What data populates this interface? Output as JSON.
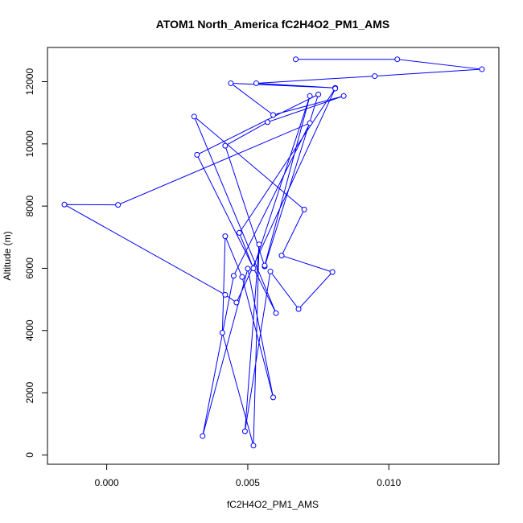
{
  "chart_data": {
    "type": "line",
    "title": "ATOM1 North_America fC2H4O2_PM1_AMS",
    "xlabel": "fC2H4O2_PM1_AMS",
    "ylabel": "Altitude (m)",
    "xlim": [
      -0.0021,
      0.0139
    ],
    "ylim": [
      -300,
      13100
    ],
    "xticks": [
      0.0,
      0.005,
      0.01
    ],
    "xtick_labels": [
      "0.000",
      "0.005",
      "0.010"
    ],
    "yticks": [
      0,
      2000,
      4000,
      6000,
      8000,
      10000,
      12000
    ],
    "ytick_labels": [
      "0",
      "2000",
      "4000",
      "6000",
      "8000",
      "10000",
      "12000"
    ],
    "grid": false,
    "legend": "none",
    "marker": "open-circle",
    "color": "#0000ff",
    "series": [
      {
        "x": [
          0.0067,
          0.0103,
          0.0133,
          0.0095,
          0.0053,
          0.0081,
          0.0044,
          0.0059,
          0.0084,
          0.0057,
          0.0042,
          0.0056,
          0.0075,
          0.0032,
          0.006,
          0.0031,
          0.007,
          0.0062,
          0.008,
          0.0068,
          0.0058,
          0.0049,
          0.0054,
          0.0052,
          0.0041,
          0.0042,
          0.0048,
          0.0059,
          0.005,
          0.0034,
          0.0045,
          0.0072,
          0.0004,
          -0.0015,
          0.0042,
          0.0046,
          0.0081,
          0.0047,
          0.0052,
          0.0072,
          0.0056
        ],
        "y": [
          12720,
          12720,
          12400,
          12180,
          11950,
          11800,
          11950,
          10930,
          11540,
          10700,
          9940,
          6060,
          11590,
          9650,
          4560,
          10880,
          7890,
          6410,
          5880,
          4690,
          5900,
          760,
          6770,
          300,
          3930,
          7030,
          5720,
          1850,
          5990,
          610,
          5760,
          10670,
          8040,
          8050,
          5150,
          4900,
          11780,
          7140,
          6000,
          11540,
          6090
        ]
      }
    ]
  }
}
